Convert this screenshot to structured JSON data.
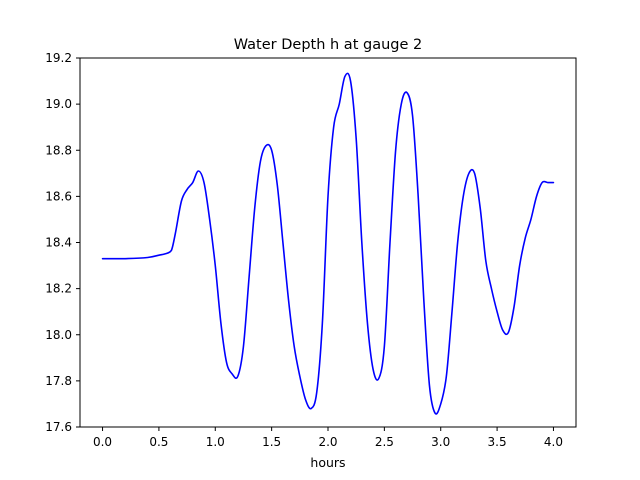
{
  "chart_data": {
    "type": "line",
    "title": "Water Depth h at gauge 2",
    "xlabel": "hours",
    "ylabel": "",
    "xlim": [
      -0.2,
      4.2
    ],
    "ylim": [
      17.6,
      19.2
    ],
    "xticks": [
      0.0,
      0.5,
      1.0,
      1.5,
      2.0,
      2.5,
      3.0,
      3.5,
      4.0
    ],
    "xtick_labels": [
      "0.0",
      "0.5",
      "1.0",
      "1.5",
      "2.0",
      "2.5",
      "3.0",
      "3.5",
      "4.0"
    ],
    "yticks": [
      17.6,
      17.8,
      18.0,
      18.2,
      18.4,
      18.6,
      18.8,
      19.0,
      19.2
    ],
    "ytick_labels": [
      "17.6",
      "17.8",
      "18.0",
      "18.2",
      "18.4",
      "18.6",
      "18.8",
      "19.0",
      "19.2"
    ],
    "grid": false,
    "legend": "none",
    "line_color": "#0000ff",
    "series": [
      {
        "x": [
          0.0,
          0.2,
          0.4,
          0.5,
          0.55,
          0.6,
          0.62,
          0.65,
          0.7,
          0.75,
          0.8,
          0.85,
          0.9,
          0.95,
          1.0,
          1.05,
          1.1,
          1.15,
          1.2,
          1.25,
          1.3,
          1.35,
          1.4,
          1.45,
          1.5,
          1.55,
          1.6,
          1.65,
          1.7,
          1.75,
          1.8,
          1.85,
          1.9,
          1.95,
          2.0,
          2.05,
          2.1,
          2.15,
          2.2,
          2.25,
          2.3,
          2.35,
          2.4,
          2.45,
          2.5,
          2.55,
          2.6,
          2.65,
          2.7,
          2.75,
          2.8,
          2.85,
          2.9,
          2.95,
          3.0,
          3.05,
          3.1,
          3.15,
          3.2,
          3.25,
          3.3,
          3.35,
          3.4,
          3.45,
          3.5,
          3.55,
          3.6,
          3.65,
          3.7,
          3.75,
          3.8,
          3.85,
          3.9,
          3.95,
          4.0
        ],
        "y": [
          18.33,
          18.33,
          18.335,
          18.345,
          18.35,
          18.36,
          18.38,
          18.45,
          18.58,
          18.63,
          18.66,
          18.71,
          18.66,
          18.5,
          18.3,
          18.05,
          17.88,
          17.83,
          17.82,
          17.95,
          18.25,
          18.55,
          18.75,
          18.82,
          18.8,
          18.65,
          18.4,
          18.15,
          17.95,
          17.82,
          17.72,
          17.68,
          17.75,
          18.05,
          18.6,
          18.9,
          19.0,
          19.12,
          19.1,
          18.85,
          18.4,
          18.05,
          17.85,
          17.81,
          17.95,
          18.4,
          18.8,
          19.0,
          19.05,
          18.95,
          18.6,
          18.15,
          17.78,
          17.66,
          17.7,
          17.82,
          18.1,
          18.4,
          18.6,
          18.7,
          18.7,
          18.55,
          18.32,
          18.2,
          18.1,
          18.02,
          18.01,
          18.12,
          18.3,
          18.42,
          18.5,
          18.6,
          18.66,
          18.66,
          18.66
        ]
      }
    ]
  }
}
